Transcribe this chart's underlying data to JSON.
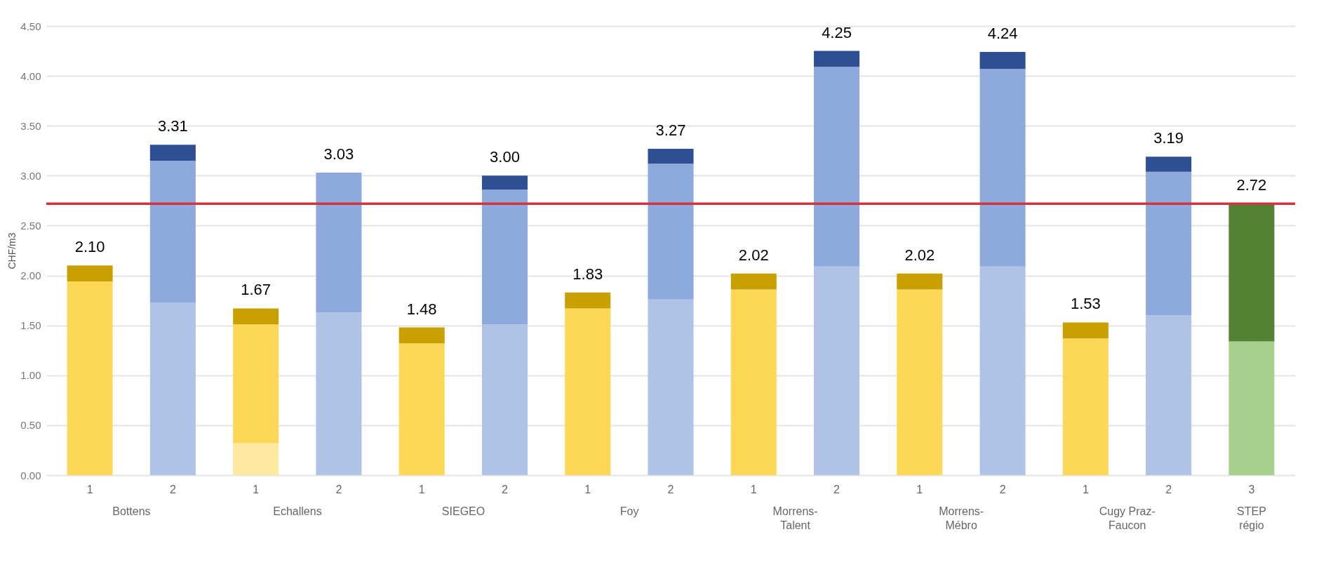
{
  "chart_data": {
    "type": "bar",
    "stacked": true,
    "ylabel": "CHF/m3",
    "categories": [
      "1",
      "2",
      "1",
      "2",
      "1",
      "2",
      "1",
      "2",
      "1",
      "2",
      "1",
      "2",
      "1",
      "2",
      "3"
    ],
    "series": [
      {
        "color": "#fde9a0",
        "values": [
          null,
          null,
          0.32,
          null,
          null,
          null,
          null,
          null,
          null,
          null,
          null,
          null,
          null,
          null,
          null
        ]
      },
      {
        "color": "#fcd856",
        "values": [
          1.94,
          null,
          1.19,
          null,
          1.32,
          null,
          1.67,
          null,
          1.86,
          null,
          1.86,
          null,
          1.37,
          null,
          null
        ]
      },
      {
        "color": "#c8a000",
        "values": [
          0.16,
          null,
          0.16,
          null,
          0.16,
          null,
          0.16,
          null,
          0.16,
          null,
          0.16,
          null,
          0.16,
          null,
          null
        ]
      },
      {
        "color": "#afc3e6",
        "values": [
          null,
          1.73,
          null,
          1.63,
          null,
          1.51,
          null,
          1.76,
          null,
          2.09,
          null,
          2.09,
          null,
          1.6,
          null
        ]
      },
      {
        "color": "#8eaadc",
        "values": [
          null,
          1.42,
          null,
          1.4,
          null,
          1.35,
          null,
          1.36,
          null,
          2.0,
          null,
          1.98,
          null,
          1.44,
          null
        ]
      },
      {
        "color": "#2f4f95",
        "values": [
          null,
          0.16,
          null,
          null,
          null,
          0.14,
          null,
          0.15,
          null,
          0.16,
          null,
          0.17,
          null,
          0.15,
          null
        ]
      },
      {
        "color": "#a8d08d",
        "values": [
          null,
          null,
          null,
          null,
          null,
          null,
          null,
          null,
          null,
          null,
          null,
          null,
          null,
          null,
          1.34
        ]
      },
      {
        "color": "#548235",
        "values": [
          null,
          null,
          null,
          null,
          null,
          null,
          null,
          null,
          null,
          null,
          null,
          null,
          null,
          null,
          1.38
        ]
      }
    ],
    "totals": [
      "2.10",
      "3.31",
      "1.67",
      "3.03",
      "1.48",
      "3.00",
      "1.83",
      "3.27",
      "2.02",
      "4.25",
      "2.02",
      "4.24",
      "1.53",
      "3.19",
      "2.72"
    ],
    "ylim": [
      0,
      4.5
    ],
    "yticks": [
      {
        "value": 0,
        "label": "0.00"
      },
      {
        "value": 0.5,
        "label": "0.50"
      },
      {
        "value": 1,
        "label": "1.00"
      },
      {
        "value": 1.5,
        "label": "1.50"
      },
      {
        "value": 2,
        "label": "2.00"
      },
      {
        "value": 2.5,
        "label": "2.50"
      },
      {
        "value": 3,
        "label": "3.00"
      },
      {
        "value": 3.5,
        "label": "3.50"
      },
      {
        "value": 4,
        "label": "4.00"
      },
      {
        "value": 4.5,
        "label": "4.50"
      }
    ],
    "ref_lines": [
      {
        "axis": "y",
        "value": 2.72,
        "color": "#d0343f"
      }
    ],
    "annotations": [
      "Bottens",
      "Echallens",
      "SIEGEO",
      "Foy",
      "Morrens-Talent",
      "Morrens-Mébro",
      "Cugy Praz-Faucon",
      "STEP régio"
    ],
    "grid": "y"
  }
}
